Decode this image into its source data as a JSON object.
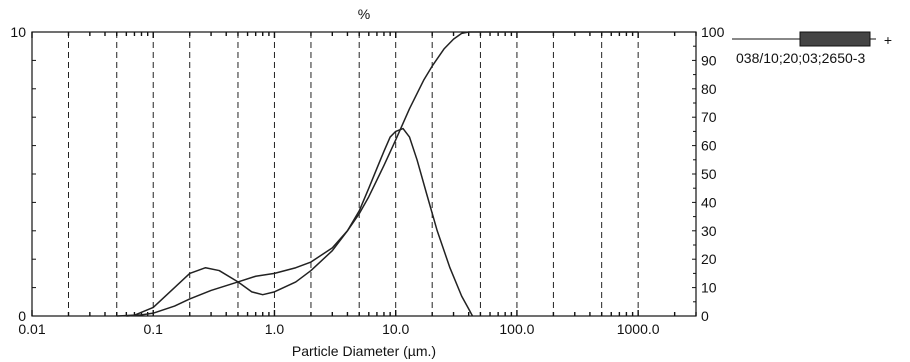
{
  "chart_data": {
    "type": "line",
    "title": "%",
    "xlabel": "Particle Diameter (µm.)",
    "ylabel_left": "",
    "ylabel_right": "",
    "x_scale": "log",
    "xlim": [
      0.01,
      3000
    ],
    "ylim_left": [
      0,
      10
    ],
    "ylim_right": [
      0,
      100
    ],
    "x_ticks": [
      0.01,
      0.1,
      1.0,
      10.0,
      100.0,
      1000.0
    ],
    "x_tick_labels": [
      "0.01",
      "0.1",
      "1.0",
      "10.0",
      "100.0",
      "1000.0"
    ],
    "left_tick_labels": [
      "0",
      "10"
    ],
    "right_ticks": [
      0,
      10,
      20,
      30,
      40,
      50,
      60,
      70,
      80,
      90,
      100
    ],
    "right_tick_labels": [
      "0",
      "10",
      "20",
      "30",
      "40",
      "50",
      "60",
      "70",
      "80",
      "90",
      "100"
    ],
    "gridlines_x": [
      0.02,
      0.05,
      0.1,
      0.2,
      0.5,
      1,
      2,
      5,
      10,
      20,
      50,
      100,
      200,
      500,
      1000
    ],
    "grid": true,
    "legend_position": "right",
    "series": [
      {
        "name": "038/10;20;03;2650-3",
        "kind": "frequency",
        "axis": "left",
        "points": [
          [
            0.05,
            0
          ],
          [
            0.07,
            0.03
          ],
          [
            0.1,
            0.3
          ],
          [
            0.15,
            1.0
          ],
          [
            0.2,
            1.5
          ],
          [
            0.27,
            1.7
          ],
          [
            0.35,
            1.6
          ],
          [
            0.5,
            1.2
          ],
          [
            0.65,
            0.85
          ],
          [
            0.8,
            0.75
          ],
          [
            1.0,
            0.85
          ],
          [
            1.5,
            1.2
          ],
          [
            2.0,
            1.6
          ],
          [
            3.0,
            2.3
          ],
          [
            4.0,
            3.0
          ],
          [
            5.0,
            3.7
          ],
          [
            6.0,
            4.5
          ],
          [
            7.0,
            5.2
          ],
          [
            8.0,
            5.8
          ],
          [
            9.0,
            6.3
          ],
          [
            10.0,
            6.5
          ],
          [
            11.5,
            6.6
          ],
          [
            13.0,
            6.3
          ],
          [
            15.0,
            5.5
          ],
          [
            18.0,
            4.3
          ],
          [
            22.0,
            3.0
          ],
          [
            28.0,
            1.7
          ],
          [
            35.0,
            0.7
          ],
          [
            40.0,
            0.25
          ],
          [
            43.0,
            0
          ]
        ]
      },
      {
        "name": "",
        "kind": "cumulative",
        "axis": "right",
        "points": [
          [
            0.06,
            0
          ],
          [
            0.08,
            0.4
          ],
          [
            0.1,
            1.0
          ],
          [
            0.15,
            3.5
          ],
          [
            0.2,
            6.0
          ],
          [
            0.3,
            9.0
          ],
          [
            0.5,
            12.0
          ],
          [
            0.7,
            14.0
          ],
          [
            1.0,
            15.0
          ],
          [
            1.5,
            17.0
          ],
          [
            2.0,
            19.0
          ],
          [
            3.0,
            24.0
          ],
          [
            4.0,
            30.0
          ],
          [
            5.0,
            36.0
          ],
          [
            6.0,
            42.0
          ],
          [
            8.0,
            53.0
          ],
          [
            10.0,
            62.0
          ],
          [
            13.0,
            73.0
          ],
          [
            17.0,
            83.0
          ],
          [
            20.0,
            88.0
          ],
          [
            25.0,
            94.0
          ],
          [
            30.0,
            97.5
          ],
          [
            35.0,
            99.5
          ],
          [
            40.0,
            100
          ],
          [
            1000.0,
            100
          ]
        ]
      }
    ]
  }
}
